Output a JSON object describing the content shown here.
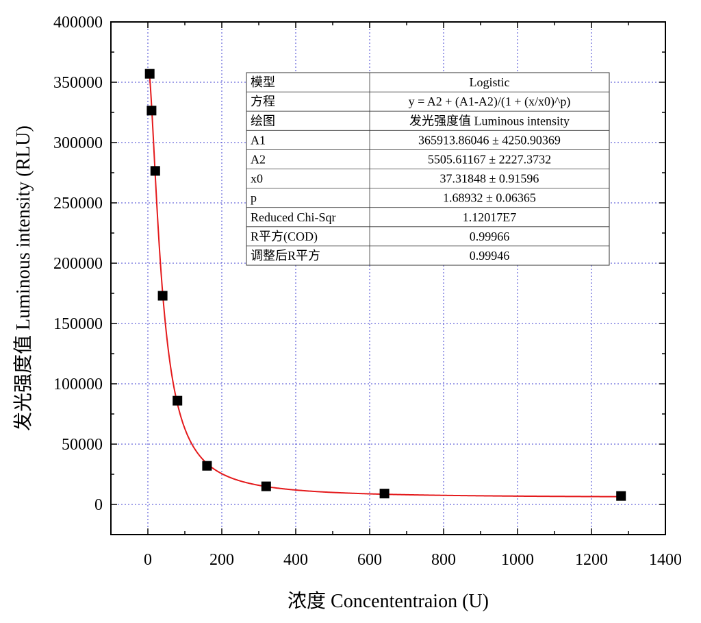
{
  "chart_data": {
    "type": "scatter",
    "xlabel": "浓度 Concententraion (U)",
    "ylabel": "发光强度值 Luminous intensity (RLU)",
    "xlim": [
      -100,
      1400
    ],
    "ylim": [
      -25000,
      400000
    ],
    "x_ticks": [
      0,
      200,
      400,
      600,
      800,
      1000,
      1200,
      1400
    ],
    "y_ticks": [
      0,
      50000,
      100000,
      150000,
      200000,
      250000,
      300000,
      350000,
      400000
    ],
    "grid": true,
    "series": [
      {
        "kind": "scatter",
        "marker": "square",
        "color": "#000000",
        "x": [
          5,
          10,
          20,
          40,
          80,
          160,
          320,
          640,
          1280
        ],
        "y": [
          357000,
          326500,
          276500,
          173000,
          86000,
          32000,
          15000,
          9000,
          7000
        ]
      },
      {
        "kind": "line",
        "color": "#e41a1c",
        "model": "Logistic",
        "params": {
          "A1": 365913.86046,
          "A2": 5505.61167,
          "x0": 37.31848,
          "p": 1.68932
        }
      }
    ],
    "fit_table": {
      "rows": [
        [
          "模型",
          "Logistic"
        ],
        [
          "方程",
          "y = A2 + (A1-A2)/(1 + (x/x0)^p)"
        ],
        [
          "绘图",
          "发光强度值 Luminous intensity"
        ],
        [
          "A1",
          "365913.86046 ± 4250.90369"
        ],
        [
          "A2",
          "5505.61167 ± 2227.3732"
        ],
        [
          "x0",
          "37.31848 ± 0.91596"
        ],
        [
          "p",
          "1.68932 ± 0.06365"
        ],
        [
          "Reduced Chi-Sqr",
          "1.12017E7"
        ],
        [
          "R平方(COD)",
          "0.99966"
        ],
        [
          "调整后R平方",
          "0.99946"
        ]
      ]
    }
  }
}
